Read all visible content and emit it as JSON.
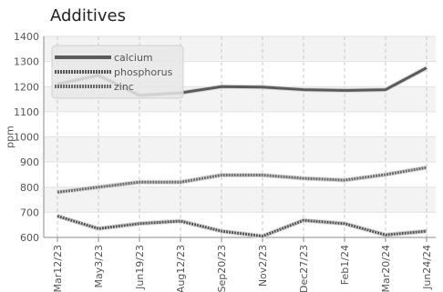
{
  "chart_data": {
    "type": "line",
    "title": "Additives",
    "ylabel": "ppm",
    "xlabel": "",
    "ylim": [
      600,
      1400
    ],
    "yticks": [
      600,
      700,
      800,
      900,
      1000,
      1100,
      1200,
      1300,
      1400
    ],
    "categories": [
      "Mar12/23",
      "May3/23",
      "Jun19/23",
      "Aug12/23",
      "Sep20/23",
      "Nov2/23",
      "Dec27/23",
      "Feb1/24",
      "Mar20/24",
      "Jun24/24"
    ],
    "grid": true,
    "legend_position": "top-left",
    "series": [
      {
        "name": "calcium",
        "color": "#5b5b5b",
        "style": "solid",
        "values": [
          1210,
          1245,
          1165,
          1175,
          1200,
          1198,
          1188,
          1185,
          1188,
          1275
        ]
      },
      {
        "name": "phosphorus",
        "color": "#555555",
        "style": "dotted",
        "values": [
          685,
          635,
          655,
          665,
          625,
          605,
          668,
          655,
          610,
          625
        ]
      },
      {
        "name": "zinc",
        "color": "#6a6a6a",
        "style": "dotted",
        "values": [
          780,
          800,
          820,
          820,
          848,
          848,
          835,
          828,
          850,
          878
        ]
      }
    ]
  }
}
